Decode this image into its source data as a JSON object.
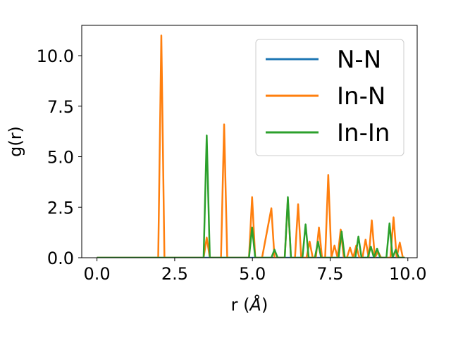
{
  "chart_data": {
    "type": "line",
    "xlabel_main": "r (",
    "xlabel_unit": "Å",
    "xlabel_close": ")",
    "ylabel": "g(r)",
    "xlim": [
      -0.49,
      10.3
    ],
    "ylim": [
      0,
      11.5
    ],
    "grid": false,
    "legend_placement": "top-right",
    "x_ticks": [
      {
        "value": 0.0,
        "label": "0.0"
      },
      {
        "value": 2.5,
        "label": "2.5"
      },
      {
        "value": 5.0,
        "label": "5.0"
      },
      {
        "value": 7.5,
        "label": "7.5"
      },
      {
        "value": 10.0,
        "label": "10.0"
      }
    ],
    "y_ticks": [
      {
        "value": 0.0,
        "label": "0.0"
      },
      {
        "value": 2.5,
        "label": "2.5"
      },
      {
        "value": 5.0,
        "label": "5.0"
      },
      {
        "value": 7.5,
        "label": "7.5"
      },
      {
        "value": 10.0,
        "label": "10.0"
      }
    ],
    "series": [
      {
        "name": "N-N",
        "color": "#1f77b4",
        "x": [
          0.0,
          9.9
        ],
        "y": [
          0.0,
          0.0
        ]
      },
      {
        "name": "In-N",
        "color": "#ff7f0e",
        "x": [
          0.0,
          1.97,
          2.07,
          2.17,
          3.43,
          3.53,
          3.63,
          3.99,
          4.09,
          4.19,
          4.89,
          4.99,
          5.09,
          5.31,
          5.61,
          5.71,
          5.84,
          5.97,
          6.04,
          6.14,
          6.24,
          6.37,
          6.47,
          6.57,
          6.74,
          6.84,
          6.94,
          7.04,
          7.14,
          7.24,
          7.34,
          7.44,
          7.54,
          7.64,
          7.74,
          7.84,
          7.94,
          8.04,
          8.14,
          8.24,
          8.34,
          8.44,
          8.54,
          8.64,
          8.74,
          8.84,
          8.94,
          9.04,
          9.14,
          9.24,
          9.34,
          9.44,
          9.54,
          9.64,
          9.74,
          9.84,
          9.9
        ],
        "y": [
          0.0,
          0.0,
          11.0,
          0.0,
          0.0,
          1.0,
          0.0,
          0.0,
          6.6,
          0.0,
          0.0,
          3.0,
          0.0,
          0.0,
          2.45,
          0.0,
          0.0,
          0.0,
          0.0,
          2.9,
          0.0,
          0.0,
          2.65,
          0.0,
          0.0,
          0.8,
          0.0,
          0.0,
          1.5,
          0.0,
          0.0,
          4.1,
          0.0,
          0.6,
          0.0,
          1.4,
          0.0,
          0.0,
          0.5,
          0.0,
          0.6,
          0.0,
          0.0,
          0.9,
          0.0,
          1.85,
          0.0,
          0.3,
          0.0,
          0.0,
          0.0,
          0.0,
          2.0,
          0.0,
          0.75,
          0.0,
          0.0
        ]
      },
      {
        "name": "In-In",
        "color": "#2ca02c",
        "x": [
          0.0,
          3.43,
          3.53,
          3.63,
          4.89,
          4.99,
          5.09,
          5.21,
          5.61,
          5.71,
          5.81,
          6.04,
          6.14,
          6.24,
          6.61,
          6.71,
          6.81,
          7.01,
          7.11,
          7.21,
          7.77,
          7.87,
          7.97,
          8.31,
          8.41,
          8.51,
          8.71,
          8.81,
          8.91,
          9.01,
          9.11,
          9.31,
          9.41,
          9.51,
          9.61,
          9.71,
          9.9
        ],
        "y": [
          0.0,
          0.0,
          6.05,
          0.0,
          0.0,
          1.5,
          0.0,
          0.0,
          0.0,
          0.4,
          0.0,
          0.0,
          3.0,
          0.0,
          0.0,
          1.65,
          0.0,
          0.0,
          0.8,
          0.0,
          0.0,
          1.3,
          0.0,
          0.0,
          1.05,
          0.0,
          0.0,
          0.55,
          0.0,
          0.45,
          0.0,
          0.0,
          1.7,
          0.0,
          0.4,
          0.0,
          0.0
        ]
      }
    ]
  }
}
